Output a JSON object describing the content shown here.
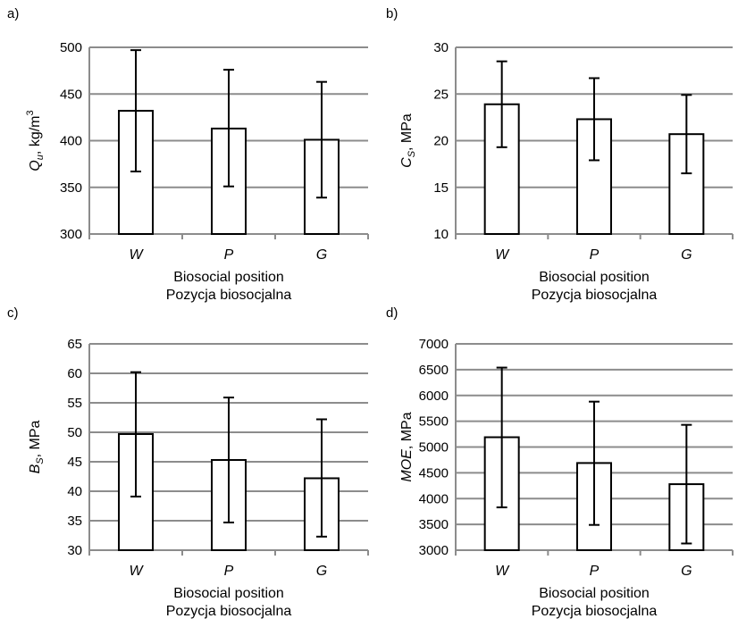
{
  "chart_data": [
    {
      "type": "bar",
      "panel_label": "a)",
      "categories": [
        "W",
        "P",
        "G"
      ],
      "values": [
        432,
        413,
        401
      ],
      "error_low": [
        367,
        351,
        339
      ],
      "error_high": [
        497,
        476,
        463
      ],
      "ylabel": "Q",
      "ylabel_sub": "u",
      "ylabel_unit": ", kg/m",
      "ylabel_sup": "3",
      "xlabel": "Biosocial position",
      "xlabel2": "Pozycja biosocjalna",
      "ylim": [
        300,
        500
      ],
      "yticks": [
        300,
        350,
        400,
        450,
        500
      ],
      "grid": true
    },
    {
      "type": "bar",
      "panel_label": "b)",
      "categories": [
        "W",
        "P",
        "G"
      ],
      "values": [
        23.9,
        22.3,
        20.7
      ],
      "error_low": [
        19.3,
        17.9,
        16.5
      ],
      "error_high": [
        28.5,
        26.7,
        24.9
      ],
      "ylabel": "C",
      "ylabel_sub": "S",
      "ylabel_unit": ", MPa",
      "ylabel_sup": "",
      "xlabel": "Biosocial position",
      "xlabel2": "Pozycja biosocjalna",
      "ylim": [
        10,
        30
      ],
      "yticks": [
        10,
        15,
        20,
        25,
        30
      ],
      "grid": true
    },
    {
      "type": "bar",
      "panel_label": "c)",
      "categories": [
        "W",
        "P",
        "G"
      ],
      "values": [
        49.7,
        45.3,
        42.2
      ],
      "error_low": [
        39.1,
        34.7,
        32.3
      ],
      "error_high": [
        60.2,
        55.9,
        52.2
      ],
      "ylabel": "B",
      "ylabel_sub": "S",
      "ylabel_unit": ", MPa",
      "ylabel_sup": "",
      "xlabel": "Biosocial position",
      "xlabel2": "Pozycja biosocjalna",
      "ylim": [
        30,
        65
      ],
      "yticks": [
        30,
        35,
        40,
        45,
        50,
        55,
        60,
        65
      ],
      "grid": true
    },
    {
      "type": "bar",
      "panel_label": "d)",
      "categories": [
        "W",
        "P",
        "G"
      ],
      "values": [
        5190,
        4690,
        4280
      ],
      "error_low": [
        3830,
        3490,
        3130
      ],
      "error_high": [
        6540,
        5880,
        5430
      ],
      "ylabel": "MOE",
      "ylabel_sub": "",
      "ylabel_unit": ", MPa",
      "ylabel_sup": "",
      "xlabel": "Biosocial position",
      "xlabel2": "Pozycja biosocjalna",
      "ylim": [
        3000,
        7000
      ],
      "yticks": [
        3000,
        3500,
        4000,
        4500,
        5000,
        5500,
        6000,
        6500,
        7000
      ],
      "grid": true
    }
  ]
}
